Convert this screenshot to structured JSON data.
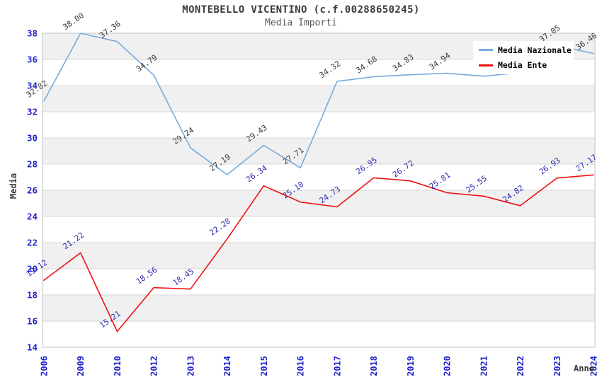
{
  "chart_data": {
    "type": "line",
    "title": "MONTEBELLO VICENTINO (c.f.00288650245)",
    "subtitle": "Media Importi",
    "xlabel": "Anno",
    "ylabel": "Media",
    "ylim": [
      14,
      38
    ],
    "ytick_step": 2,
    "yticks": [
      "14",
      "16",
      "18",
      "20",
      "22",
      "24",
      "26",
      "28",
      "30",
      "32",
      "34",
      "36",
      "38"
    ],
    "categories": [
      "2006",
      "2009",
      "2010",
      "2012",
      "2013",
      "2014",
      "2015",
      "2016",
      "2017",
      "2018",
      "2019",
      "2020",
      "2021",
      "2022",
      "2023",
      "2024"
    ],
    "grid": "horizontal",
    "striped_bands": true,
    "legend_position": "top-right-inside",
    "series": [
      {
        "name": "Media Nazionale",
        "color": "#79aad9",
        "label_color": "#3a3a3a",
        "values": [
          32.82,
          38.0,
          37.36,
          34.79,
          29.24,
          27.19,
          29.43,
          27.71,
          34.32,
          34.68,
          34.83,
          34.94,
          34.72,
          34.98,
          37.05,
          36.46
        ],
        "point_labels": [
          "32.82",
          "38.00",
          "37.36",
          "34.79",
          "29.24",
          "27.19",
          "29.43",
          "27.71",
          "34.32",
          "34.68",
          "34.83",
          "34.94",
          "",
          "",
          "37.05",
          "36.46"
        ]
      },
      {
        "name": "Media Ente",
        "color": "#ee1111",
        "label_color": "#2c2cb0",
        "values": [
          19.12,
          21.22,
          15.21,
          18.56,
          18.45,
          22.28,
          26.34,
          25.1,
          24.73,
          26.95,
          26.72,
          25.81,
          25.55,
          24.82,
          26.93,
          27.17
        ],
        "point_labels": [
          "19.12",
          "21.22",
          "15.21",
          "18.56",
          "18.45",
          "22.28",
          "26.34",
          "25.10",
          "24.73",
          "26.95",
          "26.72",
          "25.81",
          "25.55",
          "24.82",
          "26.93",
          "27.17"
        ]
      }
    ],
    "colors": {
      "axis_tick": "#2323cc",
      "stripe": "#f0f0f0",
      "gridline": "#d8d8d8",
      "plot_border": "#c2c2c2"
    }
  }
}
